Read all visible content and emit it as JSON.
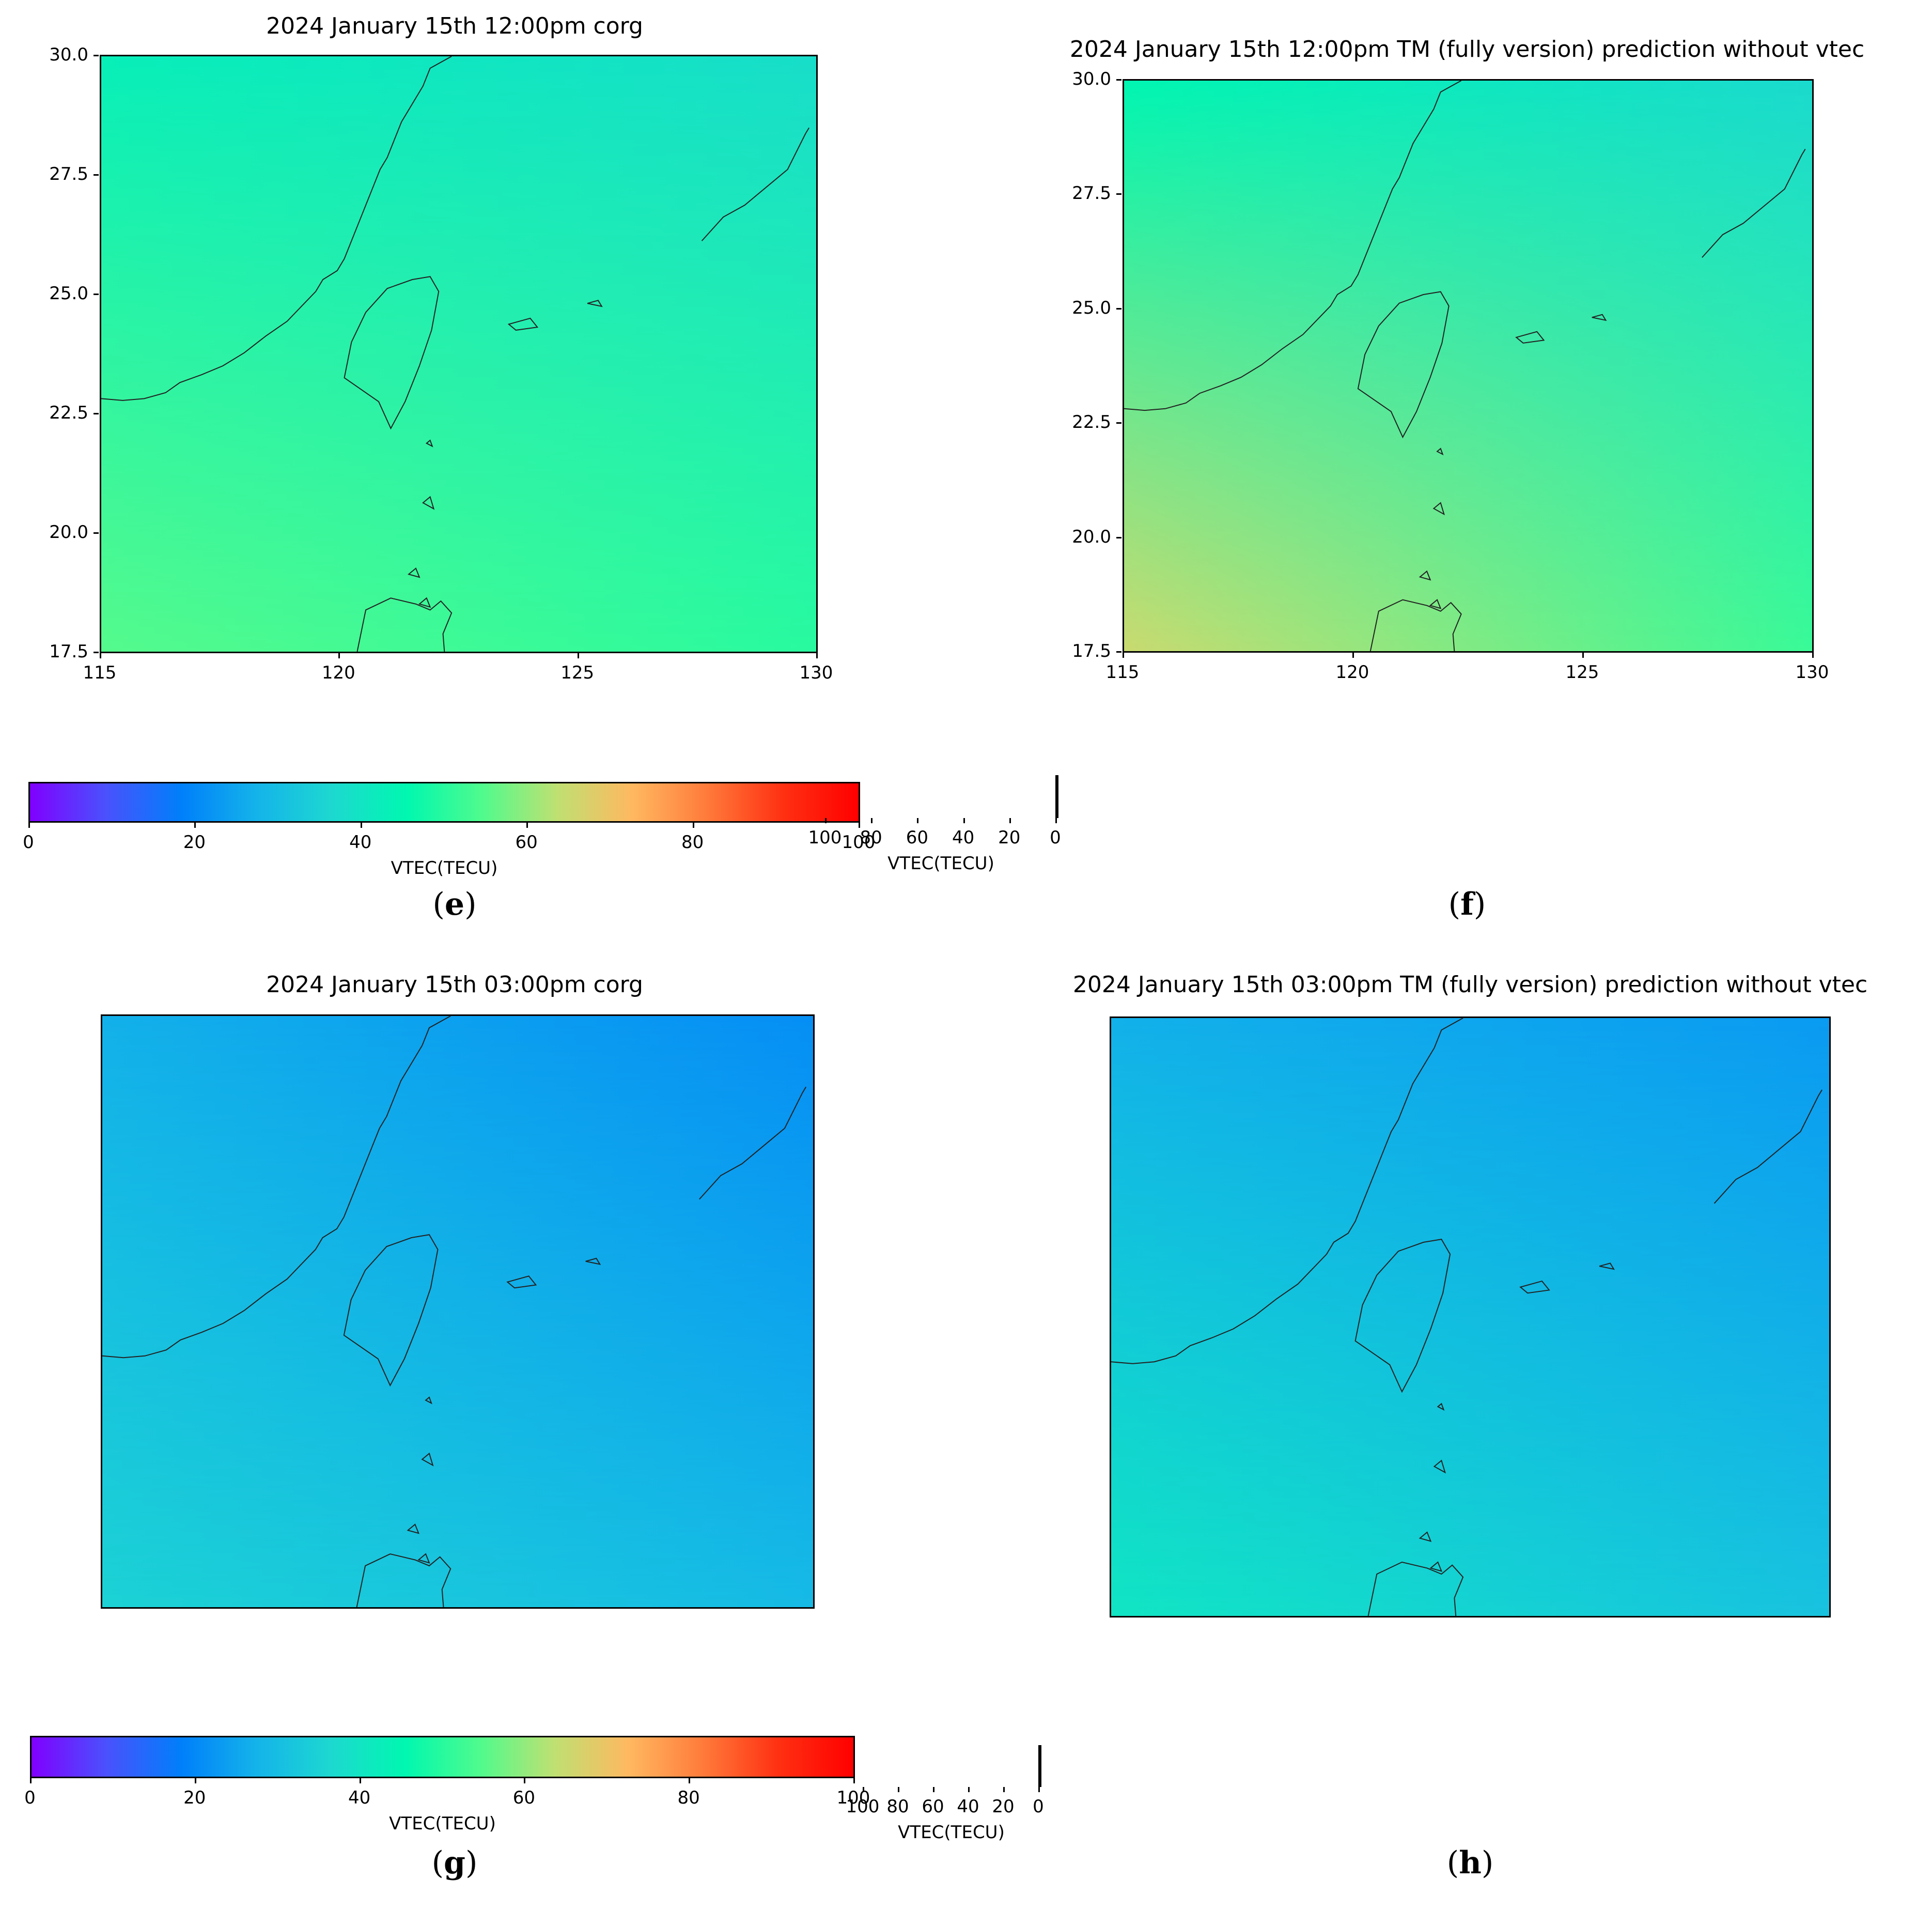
{
  "chart_data": [
    {
      "type": "heatmap",
      "panel_label": "e",
      "title": "2024 January 15th 12:00pm corg",
      "x_ticks": [
        "115",
        "120",
        "125",
        "130"
      ],
      "y_ticks": [
        "30.0",
        "27.5",
        "25.0",
        "22.5",
        "20.0",
        "17.5"
      ],
      "xlim": [
        115,
        130
      ],
      "ylim": [
        17.5,
        30.0
      ],
      "vtec_corners": {
        "top_left": 43,
        "top_right": 38,
        "bottom_left": 55,
        "bottom_right": 50
      },
      "colorbar": {
        "label": "VTEC(TECU)",
        "range": [
          0,
          100
        ],
        "ticks": [
          "0",
          "20",
          "40",
          "60",
          "80",
          "100"
        ]
      }
    },
    {
      "type": "heatmap",
      "panel_label": "f",
      "title": "2024 January 15th 12:00pm TM (fully version) prediction without vtec",
      "x_ticks": [
        "115",
        "120",
        "125",
        "130"
      ],
      "y_ticks": [
        "30.0",
        "27.5",
        "25.0",
        "22.5",
        "20.0",
        "17.5"
      ],
      "xlim": [
        115,
        130
      ],
      "ylim": [
        17.5,
        30.0
      ],
      "vtec_corners": {
        "top_left": 45,
        "top_right": 37,
        "bottom_left": 65,
        "bottom_right": 52
      },
      "colorbar": {
        "label": "VTEC(TECU)",
        "range": [
          0,
          100
        ],
        "ticks": [
          "0",
          "20",
          "40",
          "60",
          "80",
          "100"
        ]
      }
    },
    {
      "type": "heatmap",
      "panel_label": "g",
      "title": "2024 January 15th 03:00pm corg",
      "x_ticks": [],
      "y_ticks": [],
      "vtec_corners": {
        "top_left": 27,
        "top_right": 21,
        "bottom_left": 35,
        "bottom_right": 29
      },
      "colorbar": {
        "label": "VTEC(TECU)",
        "range": [
          0,
          100
        ],
        "ticks": [
          "0",
          "20",
          "40",
          "60",
          "80",
          "100"
        ]
      }
    },
    {
      "type": "heatmap",
      "panel_label": "h",
      "title": "2024 January 15th 03:00pm TM (fully version) prediction without vtec",
      "x_ticks": [],
      "y_ticks": [],
      "vtec_corners": {
        "top_left": 27,
        "top_right": 23,
        "bottom_left": 40,
        "bottom_right": 31
      },
      "colorbar": {
        "label": "VTEC(TECU)",
        "range": [
          0,
          100
        ],
        "ticks": [
          "0",
          "20",
          "40",
          "60",
          "80",
          "100"
        ]
      }
    }
  ],
  "colors": {
    "frame": "#000000",
    "background": "#ffffff"
  },
  "colormap": [
    "#8000ff",
    "#4a51fd",
    "#007ffa",
    "#14b3ea",
    "#1dd8d0",
    "#00f8b0",
    "#4ffb8d",
    "#bfe072",
    "#ffb860",
    "#ff7a3a",
    "#ff3012",
    "#ff0000"
  ]
}
